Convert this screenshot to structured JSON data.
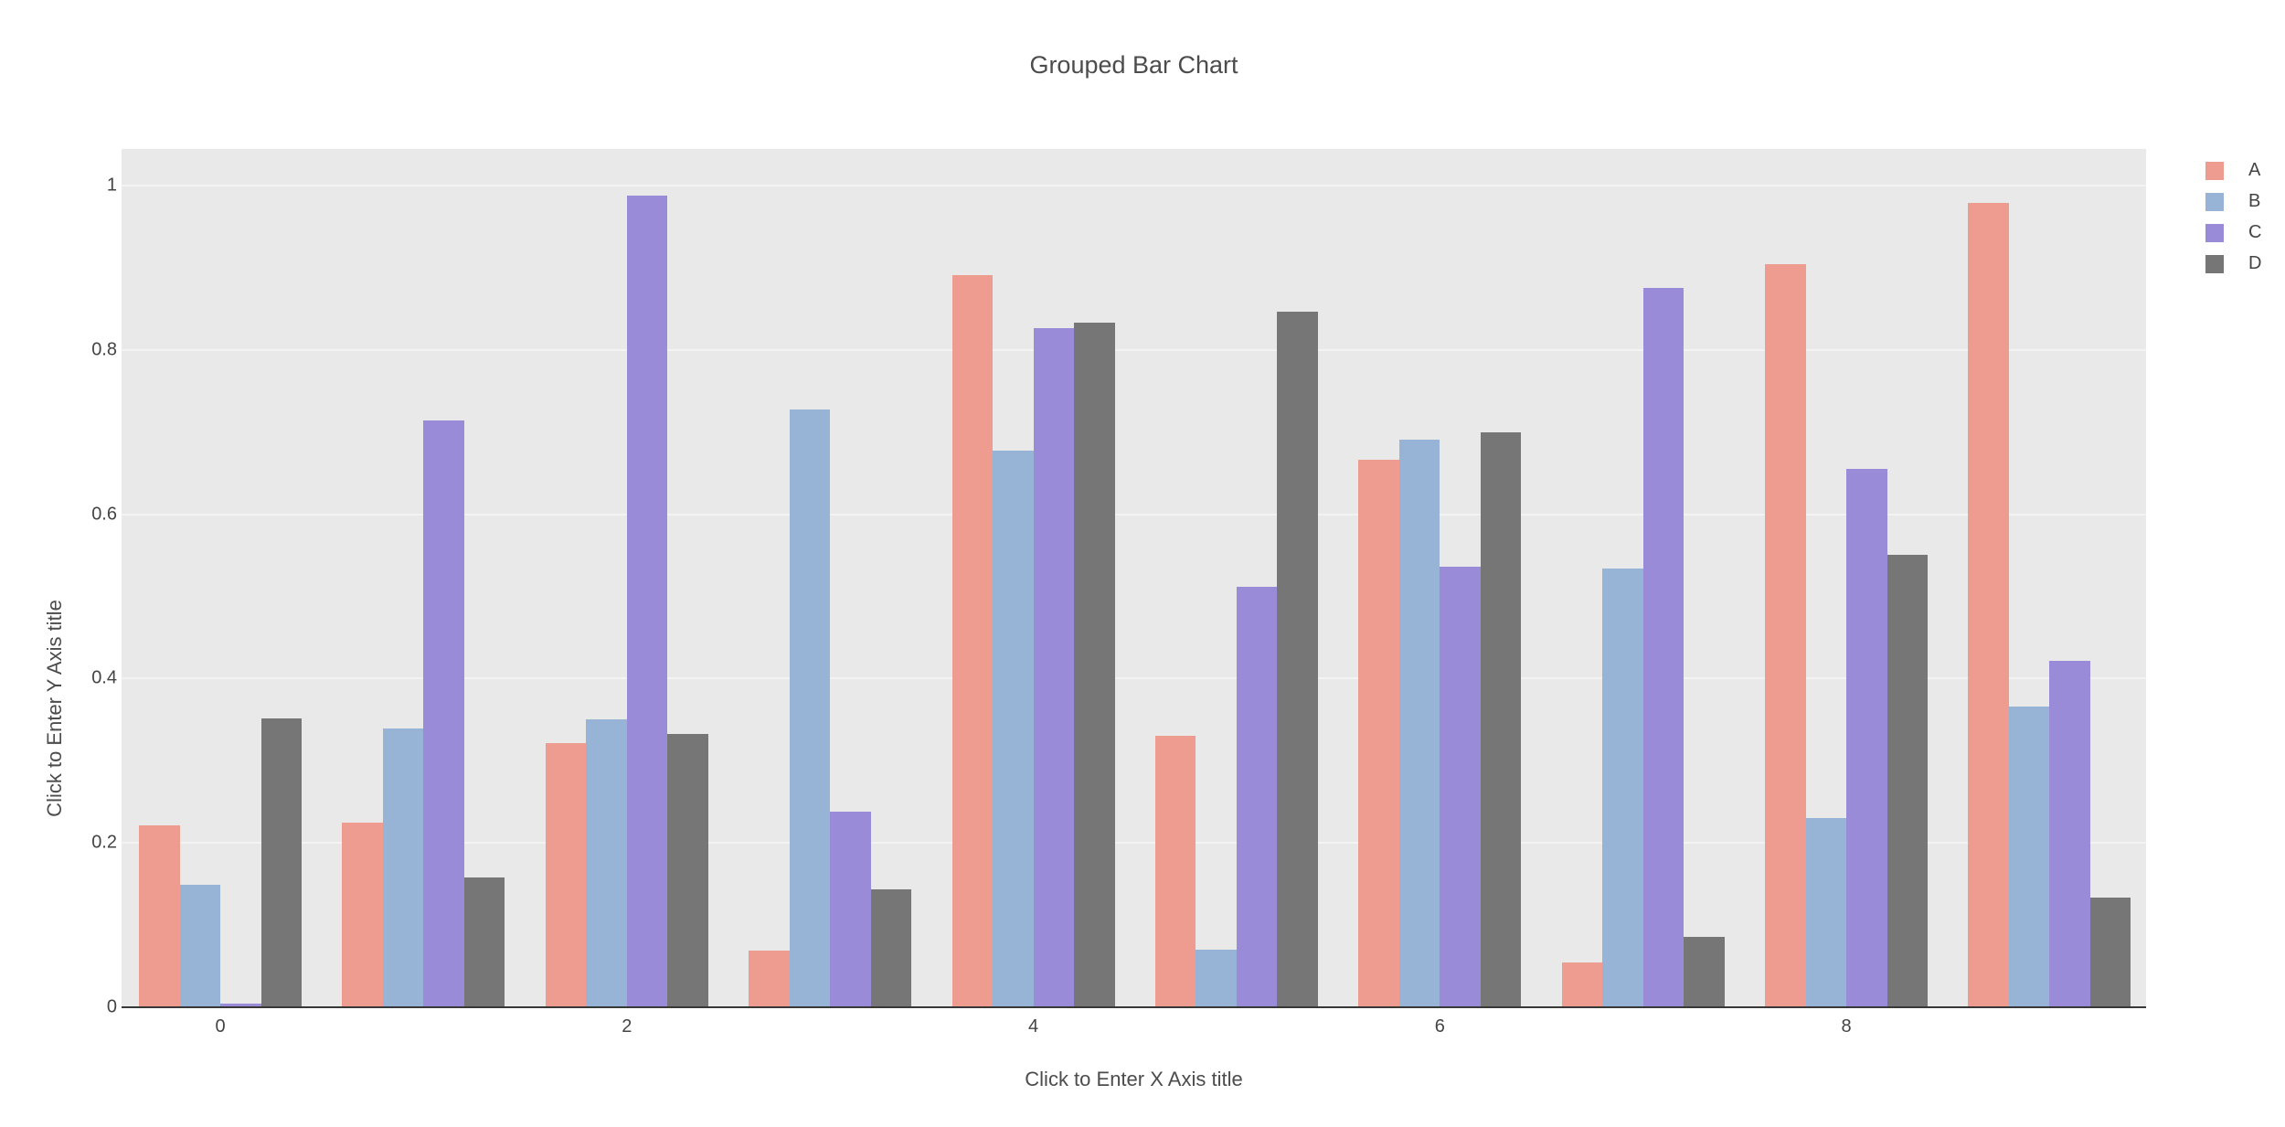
{
  "title": "Grouped Bar Chart",
  "x_axis": {
    "title": "Click to Enter X Axis title",
    "ticks": [
      "0",
      "2",
      "4",
      "6",
      "8"
    ],
    "tick_values": [
      0,
      2,
      4,
      6,
      8
    ]
  },
  "y_axis": {
    "title": "Click to Enter Y Axis title",
    "ticks": [
      "0",
      "0.2",
      "0.4",
      "0.6",
      "0.8",
      "1"
    ],
    "tick_values": [
      0,
      0.2,
      0.4,
      0.6,
      0.8,
      1
    ]
  },
  "legend": {
    "position": "top-right-outside",
    "items": [
      "A",
      "B",
      "C",
      "D"
    ]
  },
  "colors": {
    "plot_background": "#e9e9e9",
    "gridline": "#f3f3f3",
    "axis_line": "#383838",
    "text": "#444444",
    "page_background": "#ffffff"
  },
  "chart_data": {
    "type": "bar",
    "mode": "grouped",
    "title": "Grouped Bar Chart",
    "xlabel": "Click to Enter X Axis title",
    "ylabel": "Click to Enter Y Axis title",
    "x": [
      0,
      1,
      2,
      3,
      4,
      5,
      6,
      7,
      8,
      9
    ],
    "series": [
      {
        "name": "A",
        "color": "#ee9b90",
        "values": [
          0.221,
          0.225,
          0.322,
          0.069,
          0.891,
          0.33,
          0.666,
          0.055,
          0.904,
          0.979
        ]
      },
      {
        "name": "B",
        "color": "#97b3d6",
        "values": [
          0.149,
          0.339,
          0.35,
          0.728,
          0.677,
          0.07,
          0.691,
          0.534,
          0.23,
          0.366
        ]
      },
      {
        "name": "C",
        "color": "#9a8bd9",
        "values": [
          0.005,
          0.714,
          0.988,
          0.238,
          0.827,
          0.512,
          0.536,
          0.875,
          0.655,
          0.422
        ]
      },
      {
        "name": "D",
        "color": "#767676",
        "values": [
          0.352,
          0.158,
          0.333,
          0.143,
          0.833,
          0.847,
          0.7,
          0.086,
          0.551,
          0.133
        ]
      }
    ],
    "xlim": [
      -0.5,
      9.5
    ],
    "ylim": [
      0,
      1.044
    ],
    "grid": true,
    "legend_position": "right"
  }
}
